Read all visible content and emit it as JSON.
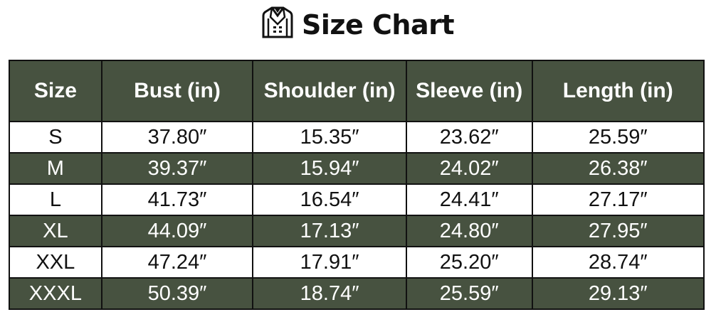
{
  "title": "Size Chart",
  "icon": "jacket-icon",
  "colors": {
    "header_bg": "#475240",
    "alt_row_bg": "#475240",
    "text_light": "#ffffff"
  },
  "table": {
    "headers": [
      "Size",
      "Bust (in)",
      "Shoulder (in)",
      "Sleeve (in)",
      "Length (in)"
    ],
    "rows": [
      [
        "S",
        "37.80″",
        "15.35″",
        "23.62″",
        "25.59″"
      ],
      [
        "M",
        "39.37″",
        "15.94″",
        "24.02″",
        "26.38″"
      ],
      [
        "L",
        "41.73″",
        "16.54″",
        "24.41″",
        "27.17″"
      ],
      [
        "XL",
        "44.09″",
        "17.13″",
        "24.80″",
        "27.95″"
      ],
      [
        "XXL",
        "47.24″",
        "17.91″",
        "25.20″",
        "28.74″"
      ],
      [
        "XXXL",
        "50.39″",
        "18.74″",
        "25.59″",
        "29.13″"
      ]
    ]
  }
}
